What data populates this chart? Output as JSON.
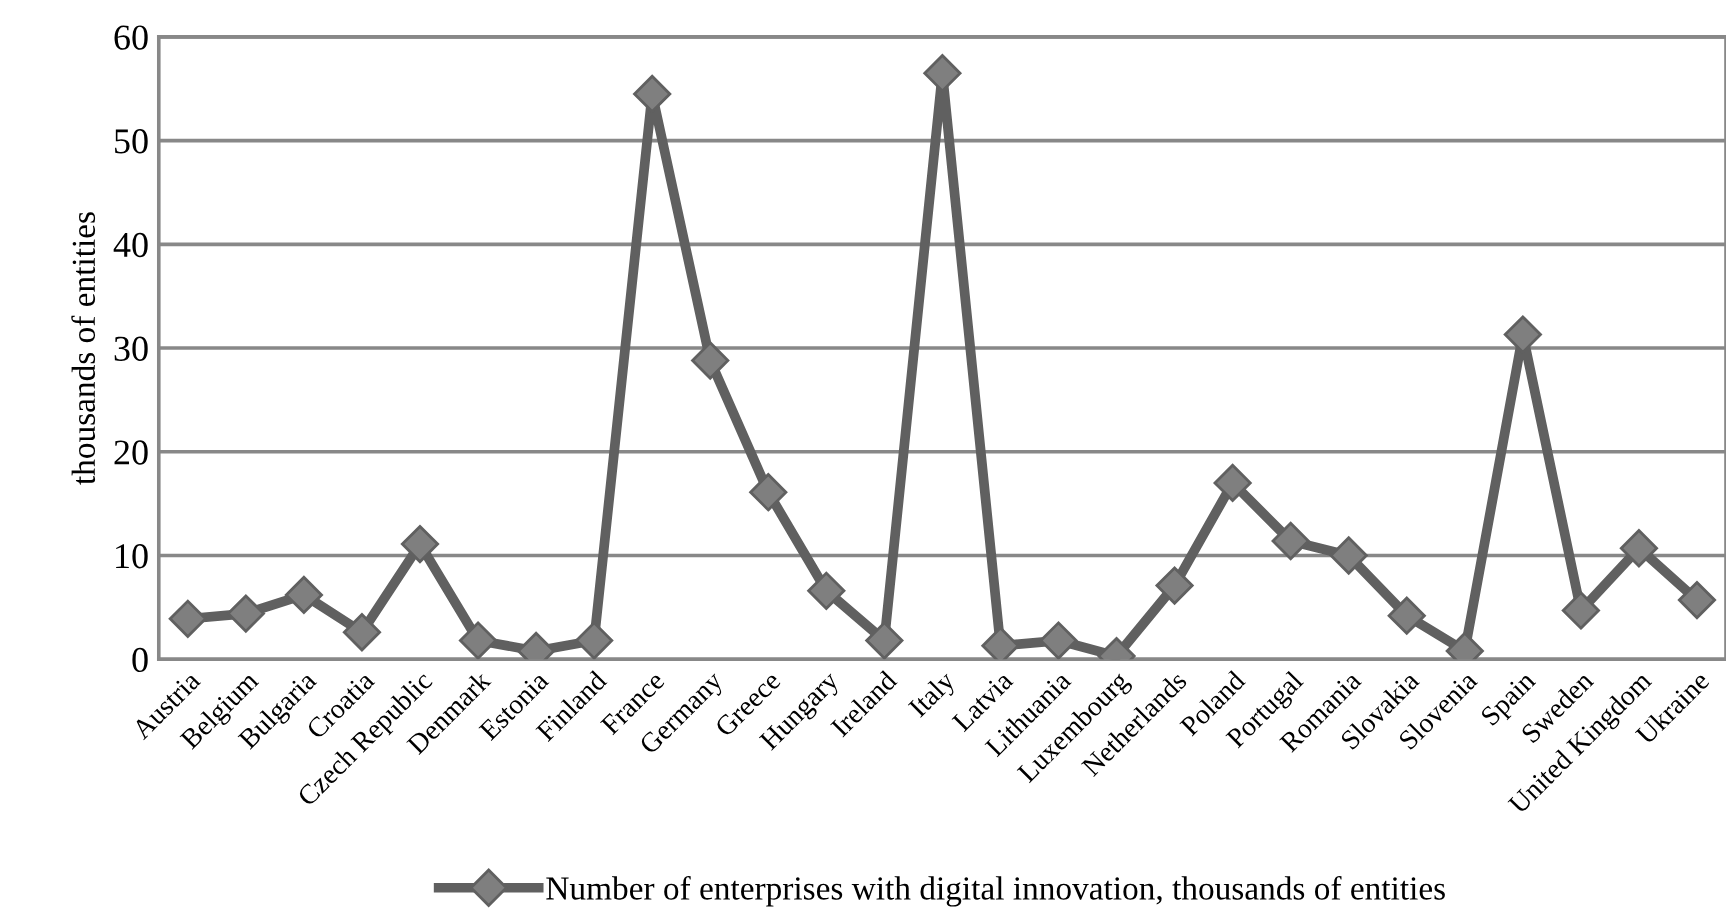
{
  "chart_data": {
    "type": "line",
    "ylabel": "thousands of entities",
    "categories": [
      "Austria",
      "Belgium",
      "Bulgaria",
      "Croatia",
      "Czech Republic",
      "Denmark",
      "Estonia",
      "Finland",
      "France",
      "Germany",
      "Greece",
      "Hungary",
      "Ireland",
      "Italy",
      "Latvia",
      "Lithuania",
      "Luxembourg",
      "Netherlands",
      "Poland",
      "Portugal",
      "Romania",
      "Slovakia",
      "Slovenia",
      "Spain",
      "Sweden",
      "United Kingdom",
      "Ukraine"
    ],
    "series": [
      {
        "name": "Number of enterprises with digital innovation, thousands of entities",
        "color": "#606060",
        "values": [
          3.9,
          4.4,
          6.2,
          2.6,
          11.1,
          1.8,
          0.8,
          1.8,
          54.5,
          28.8,
          16.1,
          6.6,
          1.8,
          56.5,
          1.3,
          1.8,
          0.3,
          7.1,
          17.0,
          11.4,
          10.0,
          4.2,
          0.8,
          31.3,
          4.7,
          10.7,
          5.7
        ]
      }
    ],
    "ylim": [
      0,
      60
    ],
    "yticks": [
      0,
      10,
      20,
      30,
      40,
      50,
      60
    ],
    "grid": "y",
    "legend": "bottom",
    "marker": "diamond",
    "line_style": "solid"
  }
}
